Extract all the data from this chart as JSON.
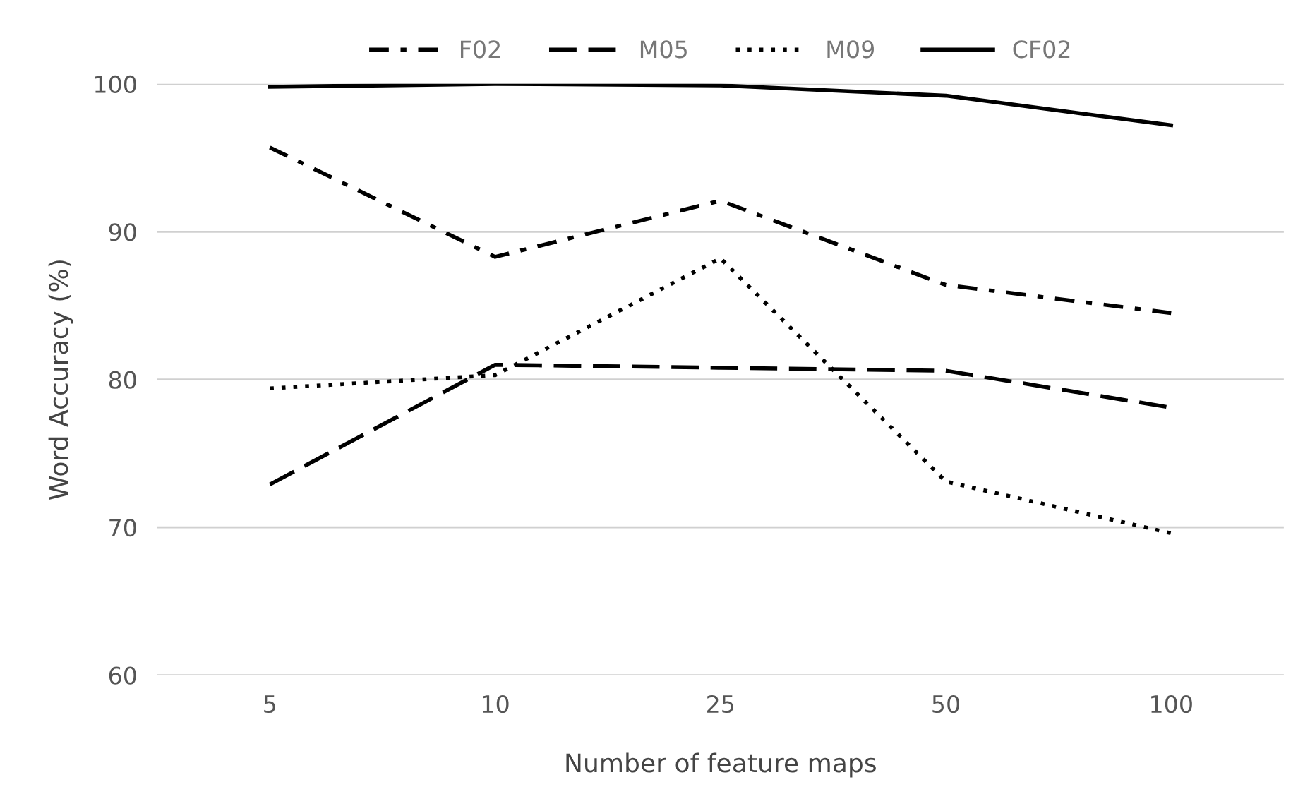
{
  "chart_data": {
    "type": "line",
    "xlabel": "Number of feature maps",
    "ylabel": "Word Accuracy (%)",
    "categories": [
      "5",
      "10",
      "25",
      "50",
      "100"
    ],
    "series": [
      {
        "name": "F02",
        "color": "#000000",
        "line_style": "dashdot",
        "values": [
          95.7,
          88.3,
          92.1,
          86.4,
          84.5
        ]
      },
      {
        "name": "M05",
        "color": "#000000",
        "line_style": "dashed",
        "values": [
          72.9,
          81.0,
          80.8,
          80.6,
          78.1
        ]
      },
      {
        "name": "M09",
        "color": "#000000",
        "line_style": "dotted",
        "values": [
          79.4,
          80.3,
          88.2,
          73.1,
          69.6
        ]
      },
      {
        "name": "CF02",
        "color": "#000000",
        "line_style": "solid",
        "values": [
          99.8,
          100,
          99.9,
          99.2,
          97.2
        ]
      }
    ],
    "ylim": [
      60,
      100
    ],
    "yticks": [
      60,
      70,
      80,
      90,
      100
    ],
    "grid": "y",
    "legend": "top",
    "marker": "none"
  }
}
